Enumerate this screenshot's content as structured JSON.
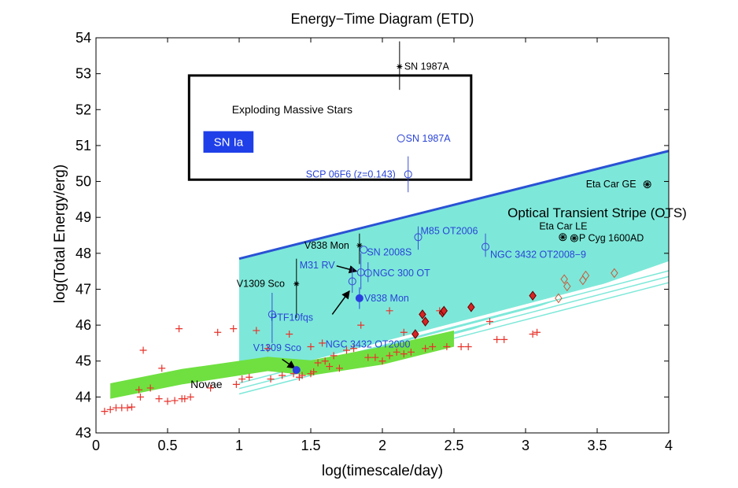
{
  "chart_data": {
    "type": "scatter",
    "title": "Energy−Time Diagram (ETD)",
    "xlabel": "log(timescale/day)",
    "ylabel": "log(Total Energy/erg)",
    "xlim": [
      0,
      4
    ],
    "ylim": [
      43,
      54
    ],
    "xticks": [
      0,
      0.5,
      1,
      1.5,
      2,
      2.5,
      3,
      3.5,
      4
    ],
    "xtick_labels": [
      "0",
      "0.5",
      "1",
      "1.5",
      "2",
      "2.5",
      "3",
      "3.5",
      "4"
    ],
    "yticks": [
      43,
      44,
      45,
      46,
      47,
      48,
      49,
      50,
      51,
      52,
      53,
      54
    ],
    "ytick_labels": [
      "43",
      "44",
      "45",
      "46",
      "47",
      "48",
      "49",
      "50",
      "51",
      "52",
      "53",
      "54"
    ],
    "grid": false,
    "regions": {
      "ots_label": "Optical Transient Stripe (OTS)",
      "ots_polygon": [
        [
          1.0,
          47.85
        ],
        [
          4.0,
          50.85
        ],
        [
          4.0,
          47.78
        ],
        [
          2.0,
          45.0
        ],
        [
          1.0,
          45.0
        ]
      ],
      "ots_upper_line": [
        [
          1.0,
          47.85
        ],
        [
          4.0,
          50.85
        ]
      ],
      "ots_lower_lines": [
        [
          [
            1.0,
            44.45
          ],
          [
            4.0,
            47.58
          ]
        ],
        [
          [
            1.0,
            44.3
          ],
          [
            4.0,
            47.42
          ]
        ],
        [
          [
            1.0,
            44.15
          ],
          [
            4.0,
            47.25
          ]
        ]
      ],
      "novae_band_label": "Novae",
      "novae_band_lower": [
        [
          0.1,
          43.95
        ],
        [
          0.6,
          44.35
        ],
        [
          1.2,
          44.72
        ],
        [
          1.5,
          44.6
        ],
        [
          2.0,
          44.9
        ],
        [
          2.5,
          45.4
        ]
      ],
      "novae_band_upper": [
        [
          2.5,
          45.85
        ],
        [
          2.0,
          45.4
        ],
        [
          1.5,
          45.02
        ],
        [
          1.2,
          45.12
        ],
        [
          0.6,
          44.78
        ],
        [
          0.1,
          44.38
        ]
      ],
      "massive_stars_box_label": "Exploding Massive Stars",
      "massive_stars_box": [
        0.65,
        52.95,
        2.62,
        50.05
      ],
      "sn_ia_label": "SN Ia",
      "sn_ia_box": [
        0.75,
        51.4,
        1.1,
        50.8
      ]
    },
    "series": [
      {
        "name": "Novae",
        "marker": "plus",
        "color": "#e8322b",
        "points": [
          [
            0.06,
            43.6
          ],
          [
            0.1,
            43.65
          ],
          [
            0.14,
            43.7
          ],
          [
            0.18,
            43.7
          ],
          [
            0.22,
            43.7
          ],
          [
            0.25,
            43.72
          ],
          [
            0.3,
            44.2
          ],
          [
            0.31,
            44.0
          ],
          [
            0.33,
            45.3
          ],
          [
            0.38,
            44.25
          ],
          [
            0.44,
            43.95
          ],
          [
            0.46,
            44.8
          ],
          [
            0.5,
            43.88
          ],
          [
            0.55,
            43.9
          ],
          [
            0.58,
            45.9
          ],
          [
            0.6,
            43.95
          ],
          [
            0.62,
            43.95
          ],
          [
            0.66,
            44.0
          ],
          [
            0.8,
            44.25
          ],
          [
            0.85,
            45.8
          ],
          [
            0.96,
            45.9
          ],
          [
            0.98,
            44.35
          ],
          [
            1.02,
            44.5
          ],
          [
            1.07,
            44.55
          ],
          [
            1.12,
            45.85
          ],
          [
            1.22,
            44.5
          ],
          [
            1.35,
            45.75
          ],
          [
            1.38,
            44.65
          ],
          [
            1.42,
            44.55
          ],
          [
            1.44,
            44.6
          ],
          [
            1.5,
            44.65
          ],
          [
            1.52,
            44.7
          ],
          [
            1.55,
            44.95
          ],
          [
            1.58,
            45.5
          ],
          [
            1.6,
            45.0
          ],
          [
            1.63,
            44.85
          ],
          [
            1.66,
            45.15
          ],
          [
            1.7,
            44.8
          ],
          [
            1.75,
            45.3
          ],
          [
            1.8,
            45.35
          ],
          [
            1.9,
            45.1
          ],
          [
            1.95,
            45.1
          ],
          [
            2.0,
            45.0
          ],
          [
            2.05,
            45.15
          ],
          [
            2.1,
            45.25
          ],
          [
            2.15,
            45.2
          ],
          [
            2.2,
            45.25
          ],
          [
            2.3,
            45.35
          ],
          [
            2.35,
            45.4
          ],
          [
            2.45,
            45.4
          ],
          [
            2.55,
            45.4
          ],
          [
            2.6,
            45.4
          ],
          [
            2.75,
            46.1
          ],
          [
            2.8,
            45.6
          ],
          [
            2.85,
            45.6
          ],
          [
            3.05,
            45.75
          ],
          [
            3.08,
            45.8
          ],
          [
            1.2,
            45.35
          ],
          [
            1.5,
            45.4
          ],
          [
            1.85,
            46.0
          ],
          [
            2.05,
            46.4
          ],
          [
            2.4,
            46.4
          ],
          [
            2.15,
            45.8
          ],
          [
            1.3,
            44.6
          ]
        ]
      },
      {
        "name": "Filled diamonds",
        "marker": "diamond-filled",
        "color": "#d42525",
        "points": [
          [
            2.23,
            45.75
          ],
          [
            2.28,
            46.3
          ],
          [
            2.3,
            46.1
          ],
          [
            2.42,
            46.35
          ],
          [
            2.43,
            46.4
          ],
          [
            2.62,
            46.5
          ],
          [
            3.05,
            46.82
          ]
        ]
      },
      {
        "name": "Open diamonds",
        "marker": "diamond-open",
        "color": "#c85a3a",
        "points": [
          [
            3.23,
            46.75
          ],
          [
            3.27,
            47.28
          ],
          [
            3.29,
            47.08
          ],
          [
            3.4,
            47.25
          ],
          [
            3.42,
            47.38
          ],
          [
            3.62,
            47.45
          ]
        ]
      }
    ],
    "labeled_points": [
      {
        "label": "SN 1987A",
        "x": 2.12,
        "y": 53.2,
        "marker": "asterisk",
        "color": "#000000",
        "err_y": [
          52.55,
          53.9
        ],
        "label_dx": 6,
        "label_dy": 4
      },
      {
        "label": "SN 1987A",
        "x": 2.13,
        "y": 51.2,
        "marker": "circle",
        "color": "#3a4fd8",
        "label_dx": 6,
        "label_dy": 4
      },
      {
        "label": "SCP 06F6 (z=0.143)",
        "x": 2.18,
        "y": 50.2,
        "marker": "circle",
        "color": "#3a4fd8",
        "err_y": [
          49.7,
          50.7
        ],
        "label_dx": -130,
        "label_dy": 4
      },
      {
        "label": "Eta Car GE",
        "x": 3.85,
        "y": 49.92,
        "marker": "circle-asterisk",
        "color": "#000000",
        "label_dx": -78,
        "label_dy": 4
      },
      {
        "label": "Eta Car LE",
        "x": 3.26,
        "y": 48.45,
        "marker": "circle-asterisk",
        "color": "#000000",
        "label_dx": -30,
        "label_dy": -10
      },
      {
        "label": "P Cyg 1600AD",
        "x": 3.34,
        "y": 48.42,
        "marker": "circle-asterisk",
        "color": "#000000",
        "label_dx": 6,
        "label_dy": 4
      },
      {
        "label": "M85 OT2006",
        "x": 2.25,
        "y": 48.45,
        "marker": "circle",
        "color": "#3a4fd8",
        "err_y": [
          48.1,
          48.75
        ],
        "label_dx": 3,
        "label_dy": -4
      },
      {
        "label": "NGC 3432 OT2008−9",
        "x": 2.72,
        "y": 48.18,
        "marker": "circle",
        "color": "#3a4fd8",
        "err_y": [
          47.9,
          48.55
        ],
        "label_dx": 6,
        "label_dy": 14
      },
      {
        "label": "V838 Mon",
        "x": 1.84,
        "y": 48.22,
        "marker": "asterisk",
        "color": "#000000",
        "err_y": [
          47.7,
          48.55
        ],
        "label_dx": -70,
        "label_dy": 4
      },
      {
        "label": "SN 2008S",
        "x": 1.87,
        "y": 48.1,
        "marker": "circle",
        "color": "#3a4fd8",
        "label_dx": 4,
        "label_dy": 7
      },
      {
        "label": "M31 RV",
        "x": 1.85,
        "y": 47.47,
        "marker": "circle",
        "color": "#3a4fd8",
        "err_y": [
          47.0,
          48.0
        ],
        "label_dx": -78,
        "label_dy": -5
      },
      {
        "label": "NGC 300 OT",
        "x": 1.9,
        "y": 47.45,
        "marker": "circle",
        "color": "#3a4fd8",
        "err_y": [
          47.2,
          47.75
        ],
        "label_dx": 6,
        "label_dy": 4
      },
      {
        "label": "V1309 Sco",
        "x": 1.4,
        "y": 47.15,
        "marker": "asterisk",
        "color": "#000000",
        "err_y": [
          46.2,
          47.85
        ],
        "label_dx": -76,
        "label_dy": 4
      },
      {
        "label": "NGC 3432 OT2000",
        "x": 1.79,
        "y": 47.22,
        "marker": "circle",
        "color": "#3a4fd8",
        "err_y": [
          46.9,
          47.6
        ],
        "label_dx": -34,
        "label_dy": 84
      },
      {
        "label": "V838 Mon",
        "x": 1.84,
        "y": 46.75,
        "marker": "circle-filled",
        "color": "#2a3fe0",
        "err_y": [
          46.45,
          47.05
        ],
        "label_dx": 6,
        "label_dy": 4
      },
      {
        "label": "PTF10fqs",
        "x": 1.23,
        "y": 46.3,
        "marker": "circle",
        "color": "#3a4fd8",
        "err_y": [
          45.5,
          46.9
        ],
        "label_dx": -2,
        "label_dy": 8
      },
      {
        "label": "V1309 Sco",
        "x": 1.4,
        "y": 44.75,
        "marker": "circle-filled",
        "color": "#2a3fe0",
        "label_dx": -55,
        "label_dy": -24
      }
    ],
    "arrows": [
      {
        "from": [
          1.68,
          47.65
        ],
        "to": [
          1.82,
          47.5
        ]
      },
      {
        "from": [
          1.65,
          46.3
        ],
        "to": [
          1.77,
          46.95
        ]
      },
      {
        "from": [
          1.3,
          45.05
        ],
        "to": [
          1.39,
          44.8
        ]
      }
    ],
    "colors": {
      "ots_fill": "#7de8d9",
      "ots_upper": "#2a52d4",
      "ots_lower": "#7de8d9",
      "novae_band": "#6fe040",
      "sn_ia_fill": "#1f3fe8",
      "sn_ia_text": "#ffffff",
      "blue_text": "#2a44d8",
      "black_text": "#000000"
    }
  }
}
